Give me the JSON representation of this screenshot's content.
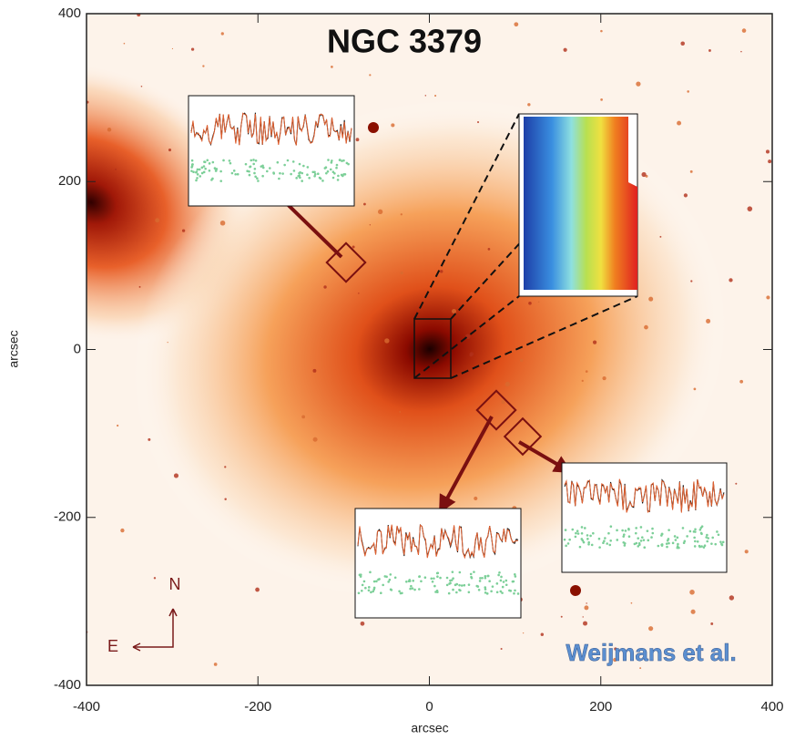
{
  "chart_data": {
    "type": "image",
    "title": "NGC 3379",
    "xlabel": "arcsec",
    "ylabel": "arcsec",
    "xlim": [
      -400,
      400
    ],
    "ylim": [
      -400,
      400
    ],
    "xticks": [
      -400,
      -200,
      0,
      200,
      400
    ],
    "yticks": [
      -400,
      -200,
      0,
      200,
      400
    ],
    "annotations": [
      "Weijmans et al.",
      "N",
      "E"
    ]
  }
}
